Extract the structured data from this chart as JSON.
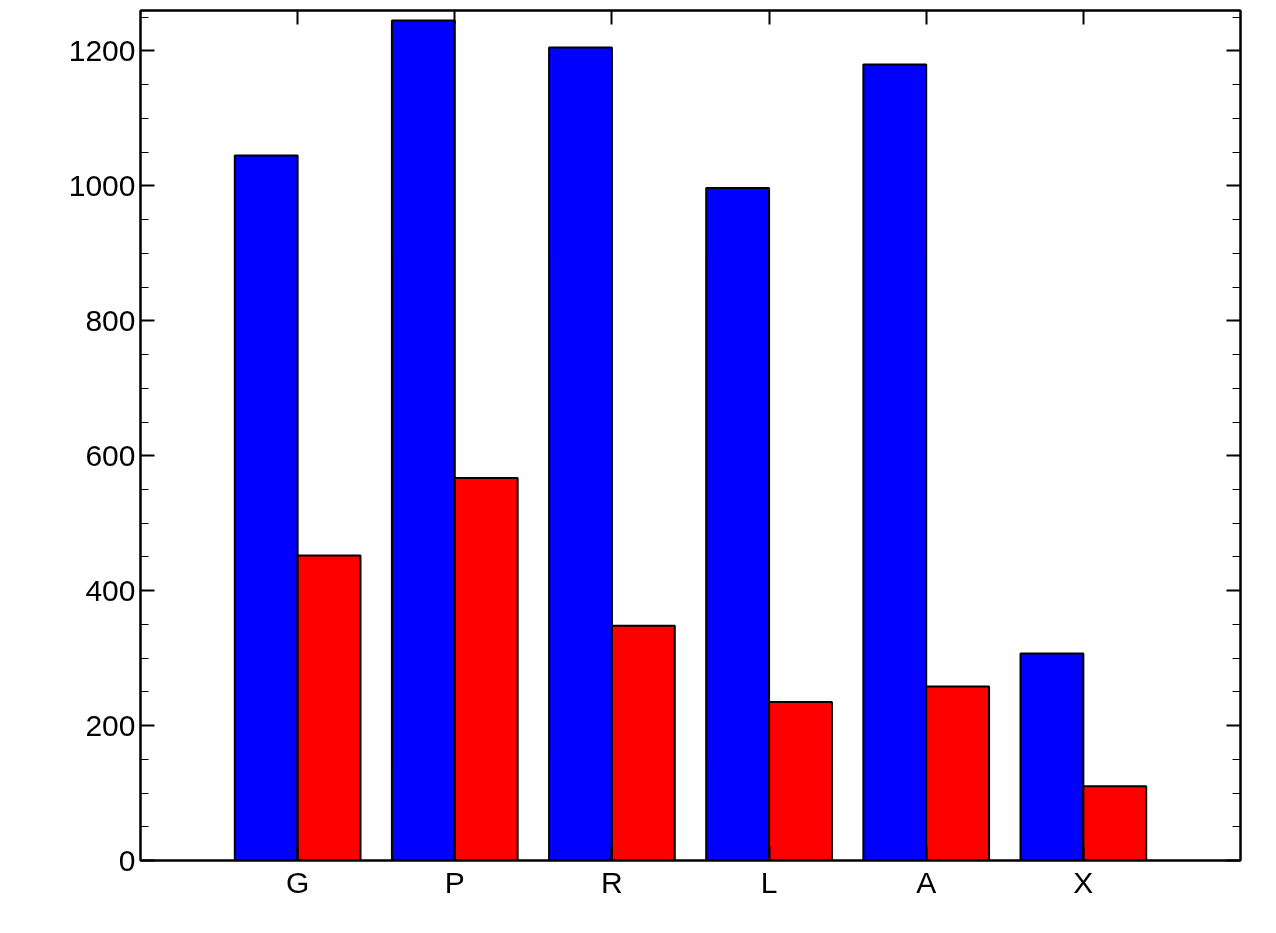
{
  "chart_data": {
    "type": "bar",
    "categories": [
      "G",
      "P",
      "R",
      "L",
      "A",
      "X"
    ],
    "series": [
      {
        "color": "#0000ff",
        "values": [
          1045,
          1245,
          1205,
          997,
          1180,
          307
        ]
      },
      {
        "color": "#ff0000",
        "values": [
          452,
          567,
          348,
          235,
          258,
          110
        ]
      }
    ],
    "ylim": [
      0,
      1260
    ],
    "yticks": [
      0,
      200,
      400,
      600,
      800,
      1000,
      1200
    ],
    "grid": false
  }
}
